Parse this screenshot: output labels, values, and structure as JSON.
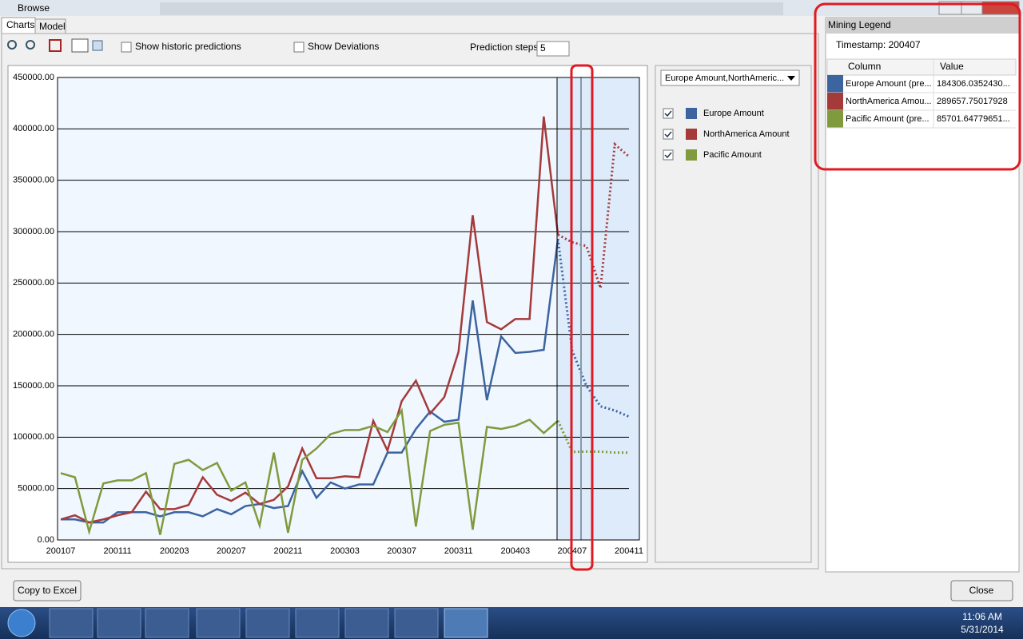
{
  "window": {
    "title": "Browse"
  },
  "tabs": [
    "Charts",
    "Model"
  ],
  "toolbar": {
    "show_historic": "Show historic predictions",
    "show_deviations": "Show Deviations",
    "prediction_steps_label": "Prediction steps",
    "prediction_steps": 5
  },
  "chart_data": {
    "type": "line",
    "categories": [
      "200107",
      null,
      null,
      null,
      "200111",
      null,
      null,
      null,
      "200203",
      null,
      null,
      null,
      "200207",
      null,
      null,
      null,
      "200211",
      null,
      null,
      null,
      "200303",
      null,
      null,
      null,
      "200307",
      null,
      null,
      null,
      "200311",
      null,
      null,
      null,
      "200403",
      null,
      null,
      null,
      "200407",
      null,
      null,
      null,
      "200411"
    ],
    "ylim": [
      0,
      450000
    ],
    "yticks": [
      {
        "value": 0,
        "label": "0.00"
      },
      {
        "value": 50000,
        "label": "50000.00"
      },
      {
        "value": 100000,
        "label": "100000.00"
      },
      {
        "value": 150000,
        "label": "150000.00"
      },
      {
        "value": 200000,
        "label": "200000.00"
      },
      {
        "value": 250000,
        "label": "250000.00"
      },
      {
        "value": 300000,
        "label": "300000.00"
      },
      {
        "value": 350000,
        "label": "350000.00"
      },
      {
        "value": 400000,
        "label": "400000.00"
      },
      {
        "value": 450000,
        "label": "450000.00"
      }
    ],
    "grid": true,
    "series": [
      {
        "name": "Europe Amount",
        "color": "#3b64a0",
        "values": [
          20000,
          20000,
          17000,
          17000,
          27000,
          27000,
          27000,
          23000,
          27000,
          27000,
          23000,
          30000,
          25000,
          33000,
          35000,
          31000,
          33000,
          67000,
          41000,
          56000,
          50000,
          54000,
          54000,
          85000,
          85000,
          108000,
          125000,
          115000,
          117000,
          233000,
          136000,
          198000,
          182000,
          183000,
          185000,
          293000,
          null,
          null,
          null,
          null,
          null
        ],
        "predictions": [
          null,
          null,
          null,
          null,
          null,
          null,
          null,
          null,
          null,
          null,
          null,
          null,
          null,
          null,
          null,
          null,
          null,
          null,
          null,
          null,
          null,
          null,
          null,
          null,
          null,
          null,
          null,
          null,
          null,
          null,
          null,
          null,
          null,
          null,
          null,
          null,
          184306.03524,
          150000,
          130000,
          126000,
          120000
        ]
      },
      {
        "name": "NorthAmerica Amount",
        "color": "#a43a3a",
        "values": [
          20000,
          24000,
          17000,
          20000,
          24000,
          27000,
          47000,
          30000,
          30000,
          34000,
          61000,
          44000,
          38000,
          46000,
          35000,
          39000,
          52000,
          89000,
          60000,
          60000,
          62000,
          61000,
          116000,
          87000,
          135000,
          155000,
          123000,
          139000,
          183000,
          316000,
          212000,
          205000,
          215000,
          215000,
          412000,
          297000,
          null,
          null,
          null,
          null,
          null
        ],
        "predictions": [
          null,
          null,
          null,
          null,
          null,
          null,
          null,
          null,
          null,
          null,
          null,
          null,
          null,
          null,
          null,
          null,
          null,
          null,
          null,
          null,
          null,
          null,
          null,
          null,
          null,
          null,
          null,
          null,
          null,
          null,
          null,
          null,
          null,
          null,
          null,
          null,
          289657.75017928,
          286000,
          245000,
          385000,
          373000
        ]
      },
      {
        "name": "Pacific Amount",
        "color": "#809b3d",
        "values": [
          65000,
          61000,
          8000,
          55000,
          58000,
          58000,
          65000,
          5000,
          74000,
          78000,
          68000,
          75000,
          48000,
          56000,
          14000,
          85000,
          7000,
          78000,
          89000,
          103000,
          107000,
          107000,
          111000,
          105000,
          126000,
          13000,
          106000,
          112000,
          114000,
          10000,
          110000,
          108000,
          111000,
          117000,
          104000,
          116000,
          null,
          null,
          null,
          null,
          null
        ],
        "predictions": [
          null,
          null,
          null,
          null,
          null,
          null,
          null,
          null,
          null,
          null,
          null,
          null,
          null,
          null,
          null,
          null,
          null,
          null,
          null,
          null,
          null,
          null,
          null,
          null,
          null,
          null,
          null,
          null,
          null,
          null,
          null,
          null,
          null,
          null,
          null,
          null,
          85701.64779651,
          86000,
          86000,
          85000,
          85000
        ]
      }
    ]
  },
  "legend_dropdown": "Europe Amount,NorthAmeric...",
  "mining_legend": {
    "title": "Mining Legend",
    "timestamp": "Timestamp: 200407",
    "columns": [
      "Column",
      "Value"
    ],
    "rows": [
      [
        "Europe Amount (pre...",
        "184306.0352430..."
      ],
      [
        "NorthAmerica Amou...",
        "289657.75017928"
      ],
      [
        "Pacific Amount (pre...",
        "85701.64779651..."
      ]
    ]
  },
  "buttons": {
    "copy": "Copy to Excel",
    "close": "Close"
  },
  "taskbar": {
    "time": "11:06 AM",
    "date": "5/31/2014"
  }
}
